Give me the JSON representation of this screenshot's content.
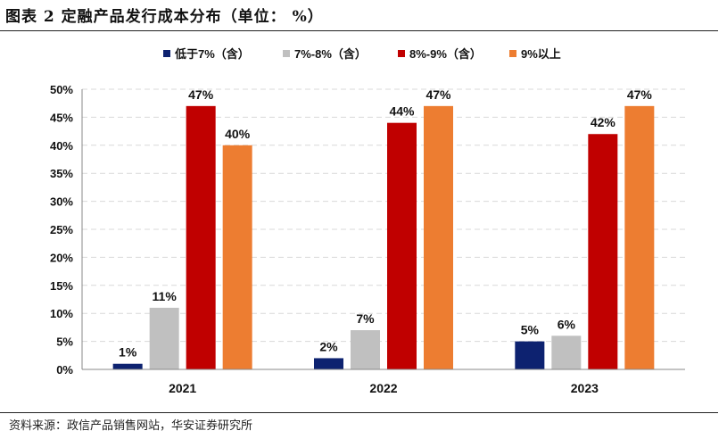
{
  "header": {
    "title": "图表 2 定融产品发行成本分布（单位： %）"
  },
  "footer": {
    "source": "资料来源：政信产品销售网站，华安证券研究所"
  },
  "chart_data": {
    "type": "bar",
    "categories": [
      "2021",
      "2022",
      "2023"
    ],
    "series": [
      {
        "name": "低于7%（含）",
        "color": "#0d2270",
        "values": [
          1,
          2,
          5
        ]
      },
      {
        "name": "7%-8%（含）",
        "color": "#c0c0c0",
        "values": [
          11,
          7,
          6
        ]
      },
      {
        "name": "8%-9%（含）",
        "color": "#c00000",
        "values": [
          47,
          44,
          42
        ]
      },
      {
        "name": "9%以上",
        "color": "#ed7d31",
        "values": [
          40,
          47,
          47
        ]
      }
    ],
    "data_labels": [
      [
        "1%",
        "2%",
        "5%"
      ],
      [
        "11%",
        "7%",
        "6%"
      ],
      [
        "47%",
        "44%",
        "42%"
      ],
      [
        "40%",
        "47%",
        "47%"
      ]
    ],
    "yticks": [
      "0%",
      "5%",
      "10%",
      "15%",
      "20%",
      "25%",
      "30%",
      "35%",
      "40%",
      "45%",
      "50%"
    ],
    "ylim": [
      0,
      50
    ],
    "grid": true,
    "legend_position": "top"
  }
}
